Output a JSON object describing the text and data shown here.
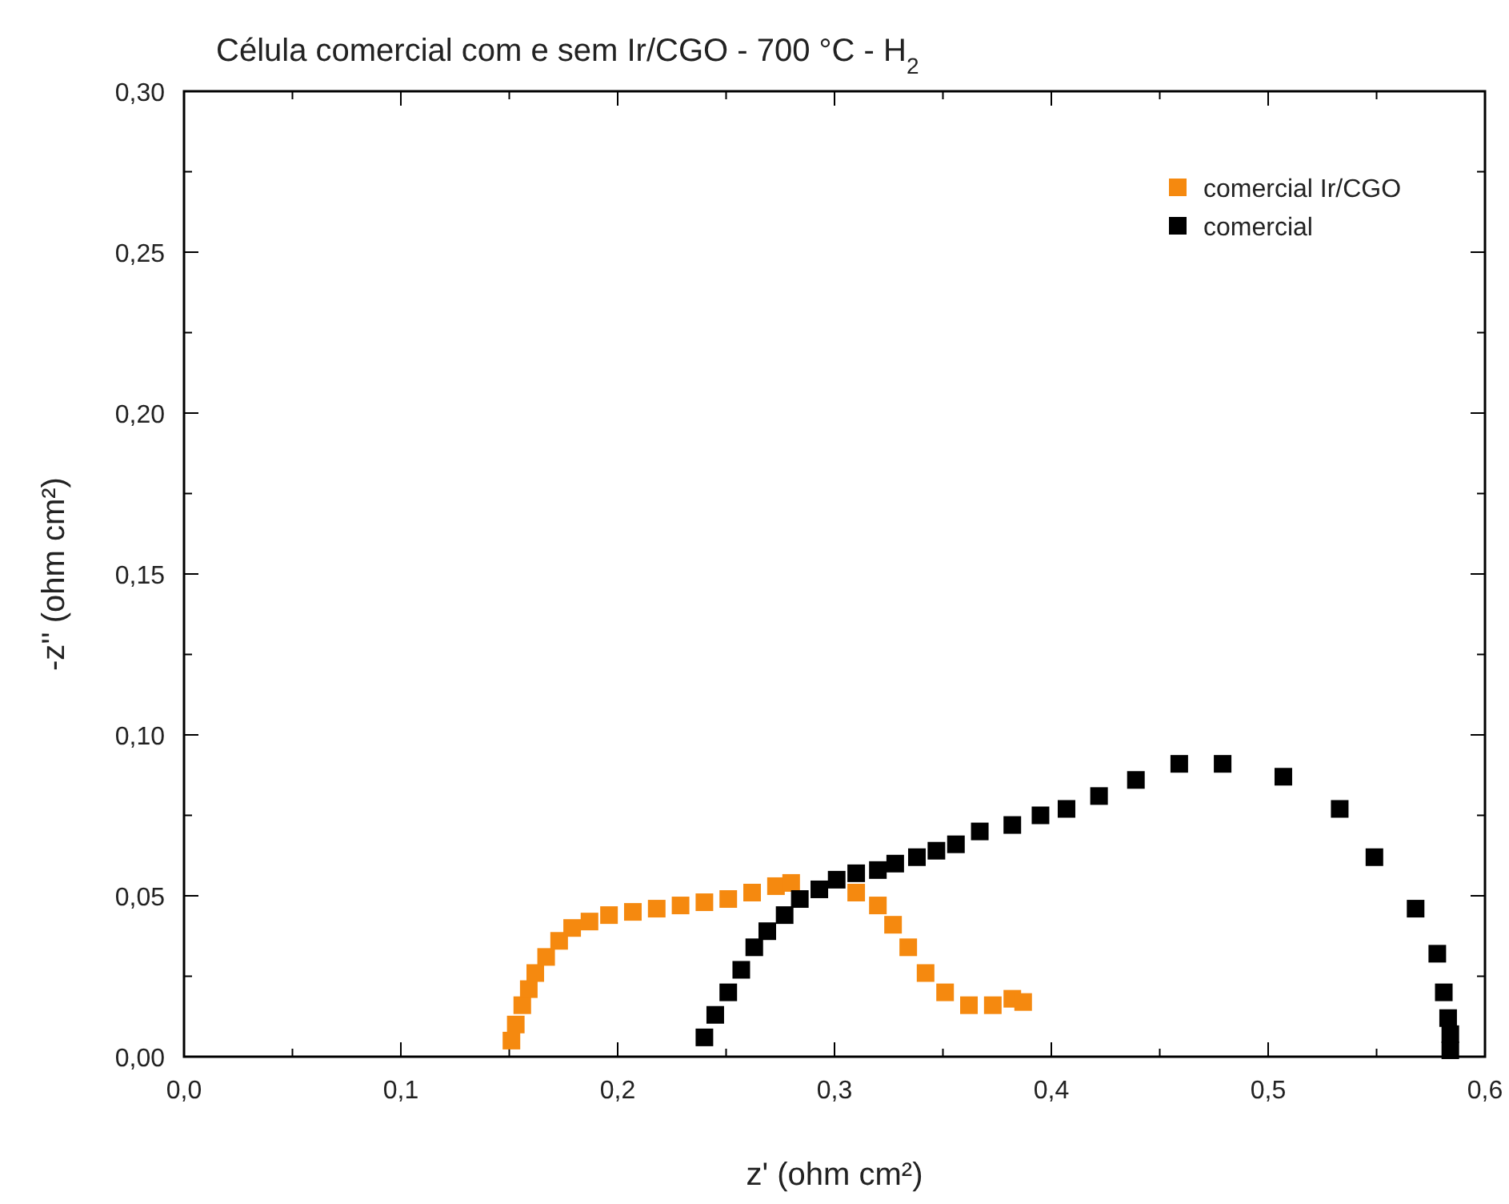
{
  "chart_data": {
    "type": "scatter",
    "title": "Célula comercial com e sem Ir/CGO - 700 °C - H$_{2}$",
    "xlabel": "z' (ohm cm²)",
    "ylabel": "-z'' (ohm cm²)",
    "xlim": [
      0,
      0.6
    ],
    "ylim": [
      0,
      0.3
    ],
    "xticks": [
      {
        "value": 0,
        "label": "0,0"
      },
      {
        "value": 0.05,
        "label": null
      },
      {
        "value": 0.1,
        "label": "0,1"
      },
      {
        "value": 0.15,
        "label": null
      },
      {
        "value": 0.2,
        "label": "0,2"
      },
      {
        "value": 0.25,
        "label": null
      },
      {
        "value": 0.3,
        "label": "0,3"
      },
      {
        "value": 0.35,
        "label": null
      },
      {
        "value": 0.4,
        "label": "0,4"
      },
      {
        "value": 0.45,
        "label": null
      },
      {
        "value": 0.5,
        "label": "0,5"
      },
      {
        "value": 0.55,
        "label": null
      },
      {
        "value": 0.6,
        "label": "0,6"
      }
    ],
    "yticks": [
      {
        "value": 0,
        "label": "0,00"
      },
      {
        "value": 0.025,
        "label": null
      },
      {
        "value": 0.05,
        "label": "0,05"
      },
      {
        "value": 0.075,
        "label": null
      },
      {
        "value": 0.1,
        "label": "0,10"
      },
      {
        "value": 0.125,
        "label": null
      },
      {
        "value": 0.15,
        "label": "0,15"
      },
      {
        "value": 0.175,
        "label": null
      },
      {
        "value": 0.2,
        "label": "0,20"
      },
      {
        "value": 0.225,
        "label": null
      },
      {
        "value": 0.25,
        "label": "0,25"
      },
      {
        "value": 0.275,
        "label": null
      },
      {
        "value": 0.3,
        "label": "0,30"
      }
    ],
    "legend": "top right",
    "marker": "square",
    "grid": false,
    "series": [
      {
        "name": "comercial Ir/CGO",
        "color": "#f5890f",
        "x": [
          0.151,
          0.153,
          0.156,
          0.159,
          0.162,
          0.167,
          0.173,
          0.179,
          0.187,
          0.196,
          0.207,
          0.218,
          0.229,
          0.24,
          0.251,
          0.262,
          0.273,
          0.28,
          0.31,
          0.32,
          0.327,
          0.334,
          0.342,
          0.351,
          0.362,
          0.373,
          0.382,
          0.387
        ],
        "values": [
          0.005,
          0.01,
          0.016,
          0.021,
          0.026,
          0.031,
          0.036,
          0.04,
          0.042,
          0.044,
          0.045,
          0.046,
          0.047,
          0.048,
          0.049,
          0.051,
          0.053,
          0.054,
          0.051,
          0.047,
          0.041,
          0.034,
          0.026,
          0.02,
          0.016,
          0.016,
          0.018,
          0.017
        ]
      },
      {
        "name": "comercial",
        "color": "#000000",
        "x": [
          0.24,
          0.245,
          0.251,
          0.257,
          0.263,
          0.269,
          0.277,
          0.284,
          0.293,
          0.301,
          0.31,
          0.32,
          0.328,
          0.338,
          0.347,
          0.356,
          0.367,
          0.382,
          0.395,
          0.407,
          0.422,
          0.439,
          0.459,
          0.479,
          0.507,
          0.533,
          0.549,
          0.568,
          0.578,
          0.581,
          0.583,
          0.584,
          0.584
        ],
        "values": [
          0.006,
          0.013,
          0.02,
          0.027,
          0.034,
          0.039,
          0.044,
          0.049,
          0.052,
          0.055,
          0.057,
          0.058,
          0.06,
          0.062,
          0.064,
          0.066,
          0.07,
          0.072,
          0.075,
          0.077,
          0.081,
          0.086,
          0.091,
          0.091,
          0.087,
          0.077,
          0.062,
          0.046,
          0.032,
          0.02,
          0.012,
          0.007,
          0.002
        ]
      }
    ]
  }
}
